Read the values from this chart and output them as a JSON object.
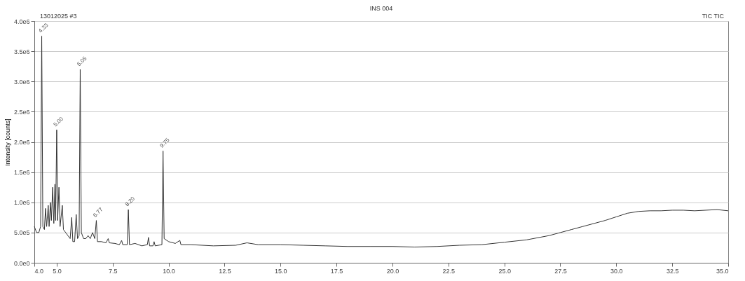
{
  "chart_data": {
    "type": "line",
    "title": "INS 004",
    "ylabel": "Intensity [counts]",
    "annotations": [
      "13012025 #3",
      "TIC TIC",
      {
        "text": "4.33",
        "x": 4.33,
        "y": 3750000
      },
      {
        "text": "5.00",
        "x": 5.0,
        "y": 2200000
      },
      {
        "text": "6.05",
        "x": 6.05,
        "y": 3200000
      },
      {
        "text": "6.77",
        "x": 6.77,
        "y": 700000
      },
      {
        "text": "8.20",
        "x": 8.2,
        "y": 880000
      },
      {
        "text": "9.75",
        "x": 9.75,
        "y": 1850000
      }
    ],
    "x": [
      4.0,
      4.1,
      4.2,
      4.28,
      4.33,
      4.38,
      4.45,
      4.5,
      4.55,
      4.62,
      4.66,
      4.72,
      4.76,
      4.82,
      4.87,
      4.92,
      4.95,
      5.0,
      5.04,
      5.1,
      5.15,
      5.25,
      5.3,
      5.4,
      5.5,
      5.6,
      5.67,
      5.72,
      5.8,
      5.87,
      5.93,
      6.0,
      6.05,
      6.1,
      6.2,
      6.3,
      6.4,
      6.5,
      6.6,
      6.7,
      6.77,
      6.82,
      7.0,
      7.2,
      7.3,
      7.35,
      7.6,
      7.8,
      7.9,
      7.95,
      8.15,
      8.2,
      8.25,
      8.5,
      8.8,
      9.05,
      9.1,
      9.15,
      9.3,
      9.35,
      9.4,
      9.7,
      9.75,
      9.8,
      10.0,
      10.3,
      10.5,
      10.55,
      11,
      12,
      13,
      13.5,
      14,
      15,
      16,
      17,
      18,
      19,
      20,
      21,
      22,
      23,
      24,
      25,
      26,
      27,
      27.5,
      28,
      28.5,
      29,
      29.5,
      30,
      30.5,
      31,
      31.5,
      32,
      32.5,
      33,
      33.5,
      34,
      34.5,
      35
    ],
    "series": [
      {
        "color": "#333333",
        "values": [
          600000,
          500000,
          500000,
          600000,
          3750000,
          600000,
          550000,
          900000,
          600000,
          950000,
          600000,
          1000000,
          700000,
          1250000,
          650000,
          1300000,
          700000,
          2200000,
          700000,
          1250000,
          600000,
          950000,
          550000,
          500000,
          450000,
          400000,
          750000,
          350000,
          350000,
          800000,
          400000,
          450000,
          3200000,
          500000,
          400000,
          400000,
          450000,
          400000,
          500000,
          400000,
          700000,
          350000,
          350000,
          330000,
          400000,
          330000,
          320000,
          300000,
          370000,
          300000,
          300000,
          880000,
          300000,
          320000,
          280000,
          300000,
          420000,
          280000,
          280000,
          350000,
          280000,
          300000,
          1850000,
          400000,
          350000,
          320000,
          370000,
          300000,
          300000,
          280000,
          290000,
          330000,
          300000,
          300000,
          290000,
          280000,
          270000,
          270000,
          270000,
          260000,
          270000,
          290000,
          300000,
          340000,
          380000,
          450000,
          500000,
          550000,
          600000,
          650000,
          700000,
          760000,
          820000,
          850000,
          860000,
          860000,
          870000,
          870000,
          860000,
          870000,
          880000,
          860000
        ]
      }
    ],
    "xlim": [
      4.0,
      35.0
    ],
    "xticks": [
      {
        "value": 4.0,
        "label": "4.0"
      },
      {
        "value": 5.0,
        "label": "5.0"
      },
      {
        "value": 7.5,
        "label": "7.5"
      },
      {
        "value": 10.0,
        "label": "10.0"
      },
      {
        "value": 12.5,
        "label": "12.5"
      },
      {
        "value": 15.0,
        "label": "15.0"
      },
      {
        "value": 17.5,
        "label": "17.5"
      },
      {
        "value": 20.0,
        "label": "20.0"
      },
      {
        "value": 22.5,
        "label": "22.5"
      },
      {
        "value": 25.0,
        "label": "25.0"
      },
      {
        "value": 27.5,
        "label": "27.5"
      },
      {
        "value": 30.0,
        "label": "30.0"
      },
      {
        "value": 32.5,
        "label": "32.5"
      },
      {
        "value": 35.0,
        "label": "35.0"
      }
    ],
    "ylim": [
      0,
      4000000
    ],
    "yticks": [
      {
        "value": 0,
        "label": "0.0e0"
      },
      {
        "value": 500000,
        "label": "5.0e5"
      },
      {
        "value": 1000000,
        "label": "1.0e6"
      },
      {
        "value": 1500000,
        "label": "1.5e6"
      },
      {
        "value": 2000000,
        "label": "2.0e6"
      },
      {
        "value": 2500000,
        "label": "2.5e6"
      },
      {
        "value": 3000000,
        "label": "3.0e6"
      },
      {
        "value": 3500000,
        "label": "3.5e6"
      },
      {
        "value": 4000000,
        "label": "4.0e6"
      }
    ],
    "grid": "y"
  }
}
